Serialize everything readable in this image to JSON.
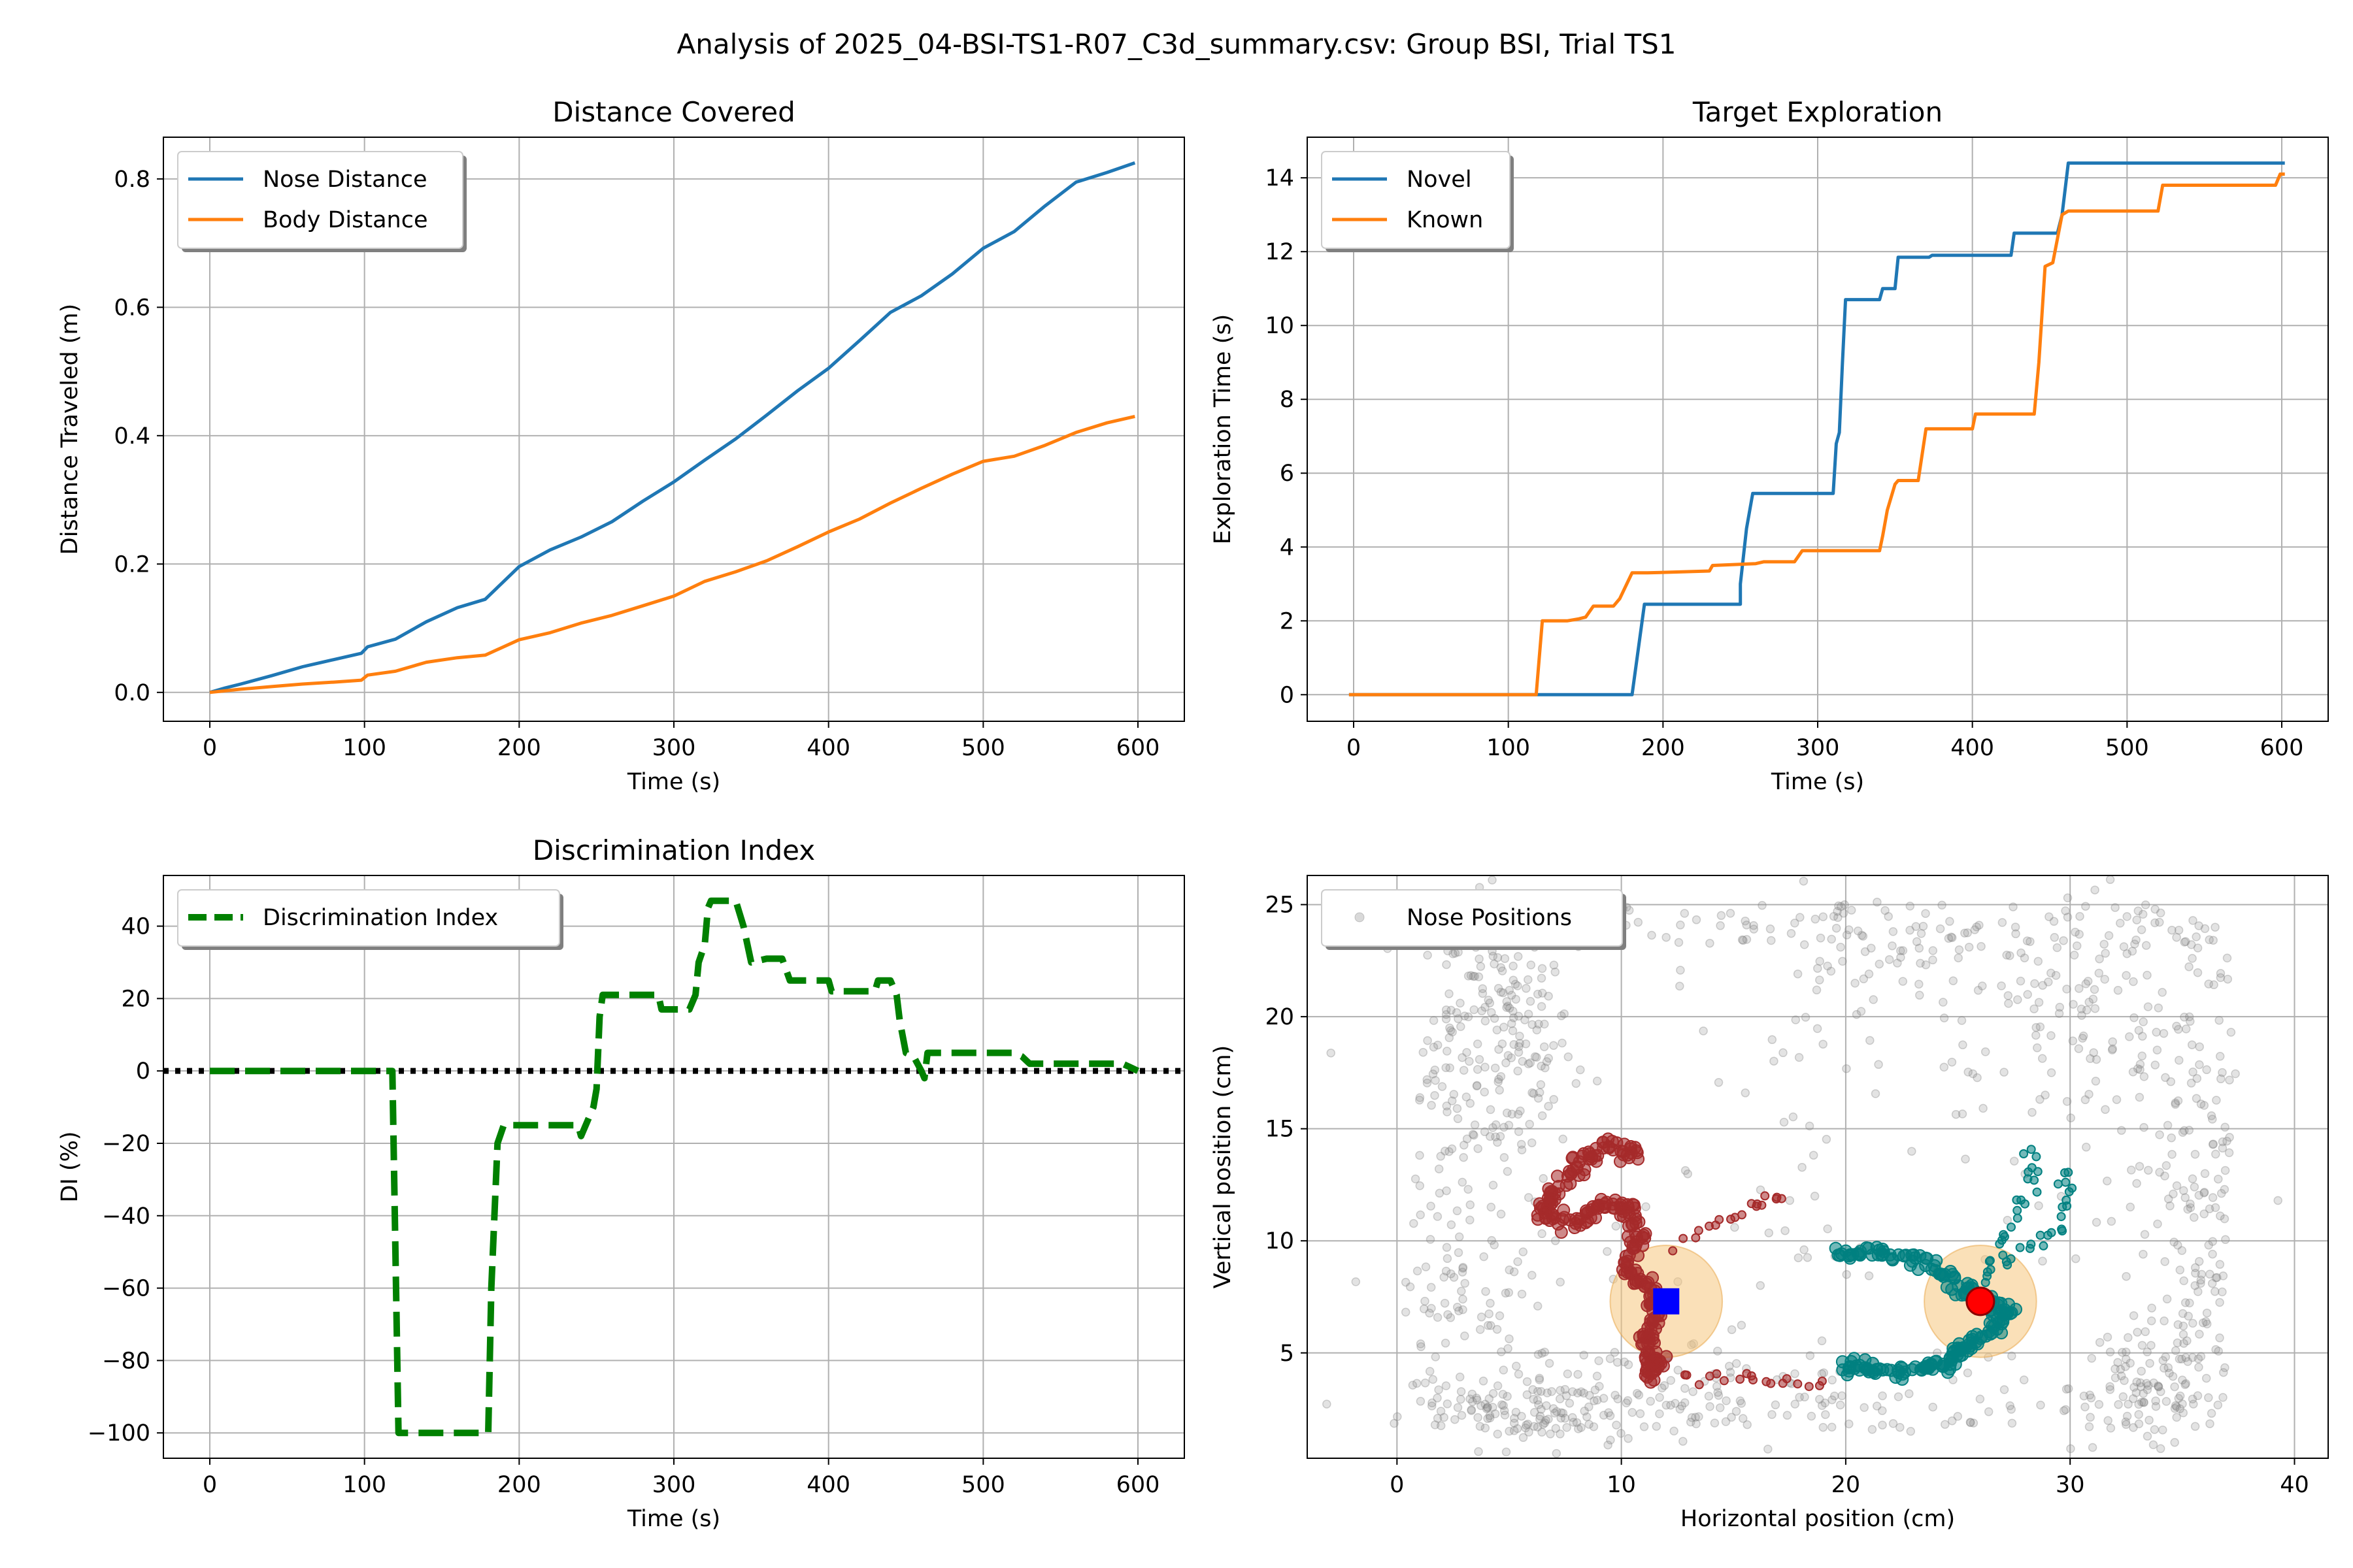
{
  "suptitle": "Analysis of 2025_04-BSI-TS1-R07_C3d_summary.csv: Group BSI, Trial TS1",
  "chart_data": [
    {
      "id": "distance",
      "type": "line",
      "title": "Distance Covered",
      "xlabel": "Time (s)",
      "ylabel": "Distance Traveled (m)",
      "xlim": [
        -30,
        630
      ],
      "ylim": [
        -0.045,
        0.865
      ],
      "xticks": [
        0,
        100,
        200,
        300,
        400,
        500,
        600
      ],
      "yticks": [
        0.0,
        0.2,
        0.4,
        0.6,
        0.8
      ],
      "ytick_labels": [
        "0.0",
        "0.2",
        "0.4",
        "0.6",
        "0.8"
      ],
      "grid": true,
      "legend": "top-left",
      "series": [
        {
          "name": "Nose Distance",
          "color": "#1f77b4",
          "x": [
            0,
            10,
            20,
            40,
            60,
            80,
            98,
            102,
            120,
            140,
            160,
            178,
            200,
            220,
            240,
            260,
            280,
            300,
            320,
            340,
            360,
            380,
            400,
            420,
            440,
            460,
            480,
            500,
            520,
            540,
            560,
            580,
            598
          ],
          "y": [
            0.0,
            0.007,
            0.013,
            0.026,
            0.04,
            0.051,
            0.061,
            0.071,
            0.083,
            0.11,
            0.132,
            0.145,
            0.196,
            0.222,
            0.242,
            0.266,
            0.298,
            0.328,
            0.362,
            0.395,
            0.432,
            0.47,
            0.505,
            0.548,
            0.592,
            0.618,
            0.652,
            0.692,
            0.718,
            0.758,
            0.795,
            0.81,
            0.825
          ]
        },
        {
          "name": "Body Distance",
          "color": "#ff7f0e",
          "x": [
            0,
            20,
            40,
            60,
            80,
            98,
            102,
            120,
            140,
            160,
            178,
            200,
            220,
            240,
            260,
            280,
            300,
            320,
            340,
            360,
            380,
            400,
            420,
            440,
            460,
            480,
            500,
            520,
            540,
            560,
            580,
            598
          ],
          "y": [
            0.0,
            0.005,
            0.009,
            0.013,
            0.016,
            0.019,
            0.027,
            0.033,
            0.047,
            0.054,
            0.058,
            0.082,
            0.093,
            0.108,
            0.12,
            0.135,
            0.15,
            0.173,
            0.188,
            0.205,
            0.227,
            0.25,
            0.27,
            0.295,
            0.318,
            0.34,
            0.36,
            0.368,
            0.385,
            0.405,
            0.42,
            0.43
          ]
        }
      ]
    },
    {
      "id": "exploration",
      "type": "line",
      "title": "Target Exploration",
      "xlabel": "Time (s)",
      "ylabel": "Exploration Time (s)",
      "xlim": [
        -30,
        630
      ],
      "ylim": [
        -0.72,
        15.1
      ],
      "xticks": [
        0,
        100,
        200,
        300,
        400,
        500,
        600
      ],
      "yticks": [
        0,
        2,
        4,
        6,
        8,
        10,
        12,
        14
      ],
      "ytick_labels": [
        "0",
        "2",
        "4",
        "6",
        "8",
        "10",
        "12",
        "14"
      ],
      "grid": true,
      "legend": "top-left",
      "series": [
        {
          "name": "Novel",
          "color": "#1f77b4",
          "x": [
            -3,
            180,
            188,
            250,
            250,
            254,
            258,
            310,
            312,
            314,
            316,
            318,
            320,
            340,
            342,
            350,
            352,
            372,
            374,
            425,
            427,
            455,
            458,
            462,
            602
          ],
          "y": [
            0,
            0,
            2.45,
            2.45,
            3.0,
            4.5,
            5.45,
            5.45,
            6.8,
            7.1,
            9.0,
            10.7,
            10.7,
            10.7,
            11.0,
            11.0,
            11.85,
            11.85,
            11.9,
            11.9,
            12.5,
            12.5,
            13.0,
            14.4,
            14.4
          ]
        },
        {
          "name": "Known",
          "color": "#ff7f0e",
          "x": [
            -3,
            118,
            122,
            138,
            145,
            150,
            155,
            168,
            172,
            180,
            190,
            230,
            232,
            260,
            265,
            285,
            290,
            340,
            342,
            345,
            350,
            352,
            365,
            370,
            400,
            402,
            440,
            443,
            447,
            452,
            458,
            462,
            520,
            523,
            596,
            599,
            602
          ],
          "y": [
            0,
            0,
            2.0,
            2.0,
            2.05,
            2.1,
            2.4,
            2.4,
            2.6,
            3.3,
            3.3,
            3.35,
            3.5,
            3.55,
            3.6,
            3.6,
            3.9,
            3.9,
            4.3,
            5.0,
            5.7,
            5.8,
            5.8,
            7.2,
            7.2,
            7.6,
            7.6,
            9.0,
            11.6,
            11.7,
            13.0,
            13.1,
            13.1,
            13.8,
            13.8,
            14.1,
            14.1
          ]
        }
      ]
    },
    {
      "id": "di",
      "type": "line",
      "title": "Discrimination Index",
      "xlabel": "Time (s)",
      "ylabel": "DI (%)",
      "xlim": [
        -30,
        630
      ],
      "ylim": [
        -107,
        54
      ],
      "xticks": [
        0,
        100,
        200,
        300,
        400,
        500,
        600
      ],
      "yticks": [
        -100,
        -80,
        -60,
        -40,
        -20,
        0,
        20,
        40
      ],
      "ytick_labels": [
        "−100",
        "−80",
        "−60",
        "−40",
        "−20",
        "0",
        "20",
        "40"
      ],
      "grid": true,
      "legend": "top-left",
      "reference_line": {
        "y": 0,
        "style": "dotted",
        "color": "#000000"
      },
      "series": [
        {
          "name": "Discrimination Index",
          "color": "#008000",
          "style": "dashed",
          "x": [
            0,
            118,
            120,
            122,
            180,
            182,
            186,
            190,
            238,
            240,
            248,
            250,
            252,
            254,
            260,
            290,
            292,
            310,
            314,
            316,
            320,
            322,
            324,
            340,
            345,
            350,
            360,
            370,
            375,
            400,
            402,
            430,
            432,
            440,
            444,
            446,
            450,
            455,
            460,
            462,
            464,
            470,
            520,
            525,
            530,
            540,
            560,
            590,
            595,
            600
          ],
          "y": [
            0,
            0,
            -50,
            -100,
            -100,
            -60,
            -20,
            -15,
            -15,
            -18,
            -10,
            -5,
            15,
            21,
            21,
            21,
            17,
            17,
            21,
            30,
            35,
            45,
            47,
            47,
            40,
            30,
            31,
            31,
            25,
            25,
            22,
            22,
            25,
            25,
            21,
            14,
            5,
            4,
            0,
            -2,
            5,
            5,
            5,
            4,
            2,
            2,
            2,
            2,
            1,
            0
          ]
        }
      ]
    },
    {
      "id": "positions",
      "type": "scatter",
      "title": "",
      "xlabel": "Horizontal position (cm)",
      "ylabel": "Vertical position (cm)",
      "xlim": [
        -4,
        41.5
      ],
      "ylim": [
        0.3,
        26.3
      ],
      "xticks": [
        0,
        10,
        20,
        30,
        40
      ],
      "yticks": [
        5,
        10,
        15,
        20,
        25
      ],
      "ytick_labels": [
        "5",
        "10",
        "15",
        "20",
        "25"
      ],
      "grid": true,
      "legend": "top-left",
      "series": [
        {
          "name": "Nose Positions",
          "color": "#808080",
          "clusters": [
            {
              "x": 4.8,
              "y": 19,
              "sx": 1.5,
              "sy": 3.5,
              "n": 190
            },
            {
              "x": 7,
              "y": 2.5,
              "sx": 3.5,
              "sy": 0.9,
              "n": 110
            },
            {
              "x": 33.2,
              "y": 3.5,
              "sx": 1.6,
              "sy": 1.5,
              "n": 95
            },
            {
              "x": 31,
              "y": 20,
              "sx": 2.5,
              "sy": 2.5,
              "n": 85
            },
            {
              "x": 34.5,
              "y": 16,
              "sx": 2.0,
              "sy": 2.5,
              "n": 55
            },
            {
              "x": 22,
              "y": 22,
              "sx": 4.5,
              "sy": 1.8,
              "n": 80
            },
            {
              "x": 16,
              "y": 3.8,
              "sx": 7,
              "sy": 1.3,
              "n": 70
            },
            {
              "x": 18,
              "y": 13.5,
              "sx": 8,
              "sy": 4.5,
              "n": 80
            },
            {
              "x": 3.5,
              "y": 7,
              "sx": 1.6,
              "sy": 3.0,
              "n": 60
            },
            {
              "x": 35.5,
              "y": 9,
              "sx": 1.0,
              "sy": 3.0,
              "n": 45
            }
          ],
          "band": [
            {
              "x1": 1.5,
              "y1": 23,
              "x2": 36.5,
              "y2": 25,
              "n": 110
            },
            {
              "x1": 1.5,
              "y1": 1.5,
              "x2": 36.5,
              "y2": 3.2,
              "n": 100
            },
            {
              "x1": 1.0,
              "y1": 2,
              "x2": 3.0,
              "y2": 24,
              "n": 70
            },
            {
              "x1": 35.0,
              "y1": 2,
              "x2": 37.0,
              "y2": 24,
              "n": 70
            }
          ]
        },
        {
          "name": "",
          "color": "#a52a2a",
          "path": [
            [
              10.9,
              13.9
            ],
            [
              9.5,
              14.2
            ],
            [
              8.2,
              13.5
            ],
            [
              7.0,
              12.2
            ],
            [
              6.4,
              11.2
            ],
            [
              8.0,
              10.8
            ],
            [
              9.2,
              11.6
            ],
            [
              10.3,
              11.5
            ],
            [
              10.8,
              10.0
            ],
            [
              10.2,
              8.6
            ],
            [
              11.3,
              7.8
            ],
            [
              11.5,
              6.5
            ],
            [
              11.0,
              5.2
            ],
            [
              11.8,
              4.5
            ],
            [
              11.0,
              3.8
            ]
          ],
          "extra_path": [
            [
              12.5,
              9.8
            ],
            [
              14.5,
              10.8
            ],
            [
              16.0,
              11.6
            ],
            [
              17.5,
              12.1
            ]
          ],
          "extra_path2": [
            [
              12.8,
              4.0
            ],
            [
              15.0,
              3.9
            ],
            [
              17.0,
              3.7
            ],
            [
              19.5,
              3.6
            ]
          ]
        },
        {
          "name": "",
          "color": "#008080",
          "path": [
            [
              19.5,
              9.2
            ],
            [
              21.5,
              9.6
            ],
            [
              23.5,
              9.0
            ],
            [
              25.0,
              8.0
            ],
            [
              26.0,
              7.4
            ],
            [
              27.3,
              7.0
            ],
            [
              26.4,
              6.0
            ],
            [
              25.2,
              5.2
            ],
            [
              24.5,
              4.6
            ],
            [
              23.0,
              4.1
            ],
            [
              21.0,
              4.3
            ],
            [
              19.8,
              4.4
            ]
          ],
          "extra_path": [
            [
              26.0,
              8.3
            ],
            [
              27.0,
              9.8
            ],
            [
              27.8,
              11.5
            ],
            [
              28.3,
              13.0
            ],
            [
              28.0,
              14.3
            ]
          ],
          "extra_path2": [
            [
              26.5,
              8.5
            ],
            [
              28.0,
              9.5
            ],
            [
              29.5,
              10.5
            ],
            [
              30.0,
              12.0
            ],
            [
              29.6,
              13.5
            ]
          ]
        }
      ],
      "objects": [
        {
          "shape": "circle",
          "x": 12.0,
          "y": 7.3,
          "radius": 2.5,
          "color": "#f5c77e"
        },
        {
          "shape": "circle",
          "x": 26.0,
          "y": 7.3,
          "radius": 2.5,
          "color": "#f5c77e"
        },
        {
          "shape": "square-marker",
          "x": 12.0,
          "y": 7.3,
          "color": "#0000ff"
        },
        {
          "shape": "circle-marker",
          "x": 26.0,
          "y": 7.3,
          "color": "#ff0000"
        }
      ]
    }
  ]
}
